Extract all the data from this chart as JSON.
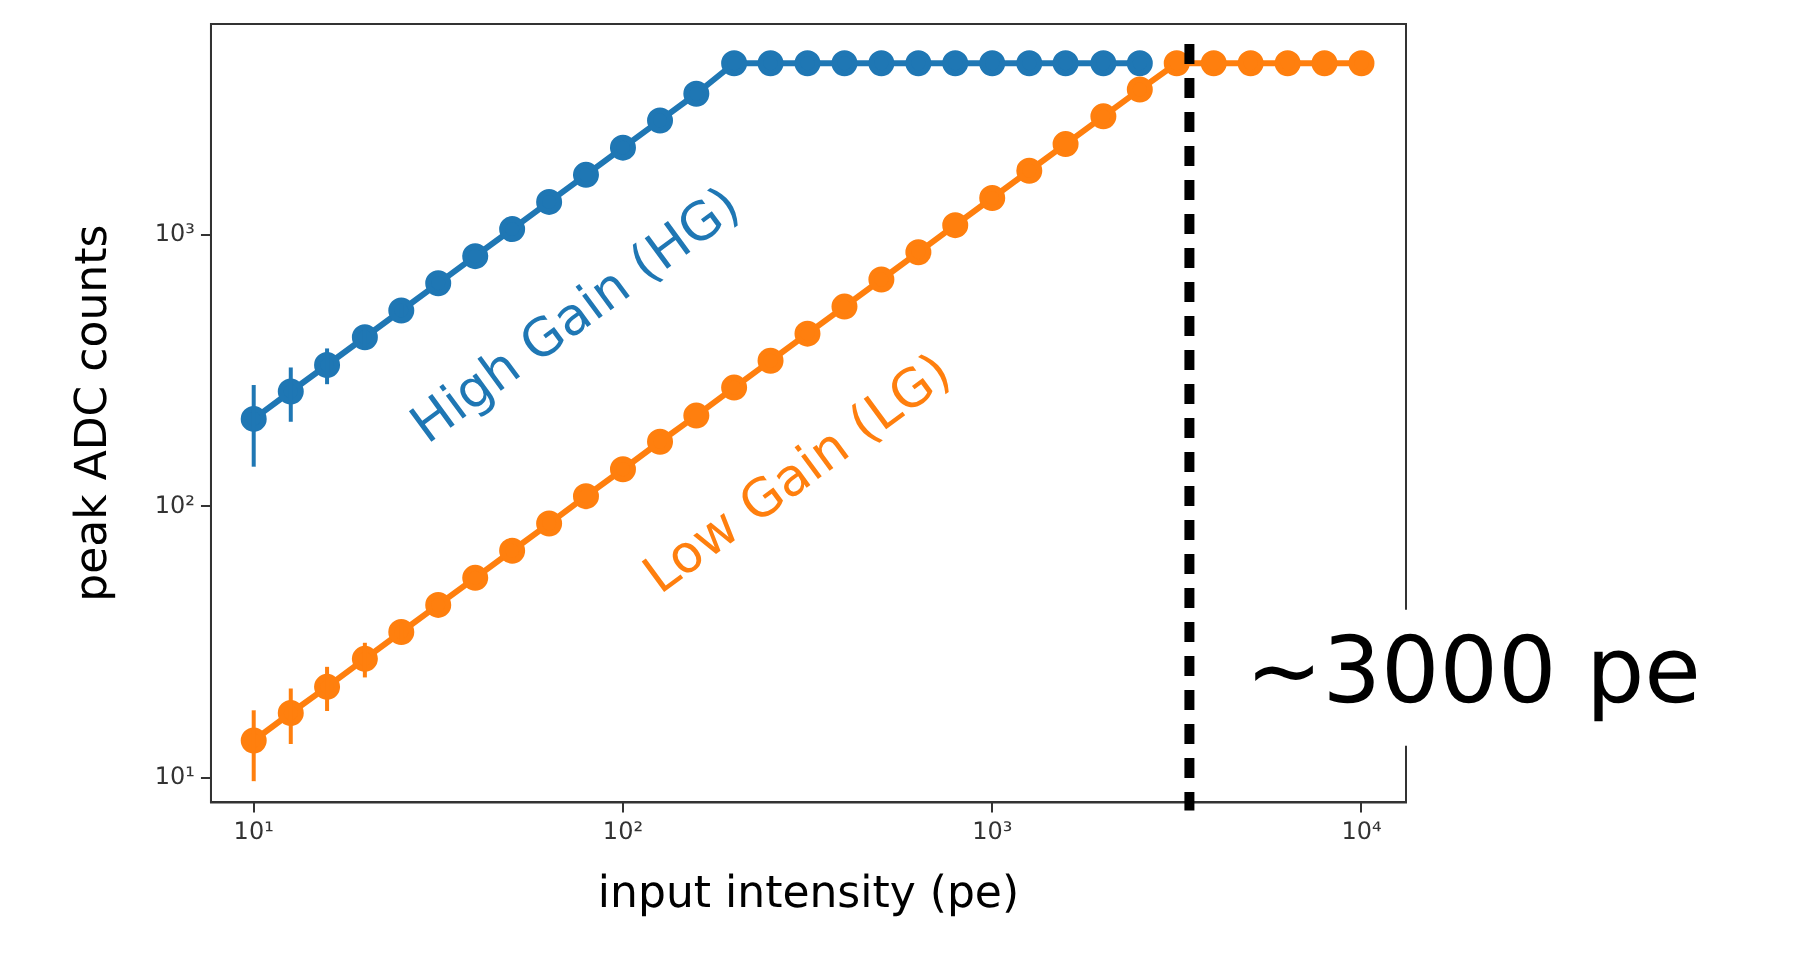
{
  "chart_data": {
    "type": "line",
    "xlabel": "input intensity (pe)",
    "ylabel": "peak ADC counts",
    "x": [
      10,
      12.6,
      15.8,
      20,
      25.1,
      31.6,
      39.8,
      50.1,
      63.1,
      79.4,
      100,
      126,
      158,
      200,
      251,
      316,
      398,
      501,
      631,
      794,
      1000,
      1260,
      1580,
      2000,
      2510,
      3160,
      3980,
      5010,
      6310,
      7940,
      10000
    ],
    "series": [
      {
        "name": "High Gain (HG)",
        "color": "#1f77b4",
        "values": [
          210,
          265,
          332,
          420,
          527,
          664,
          836,
          1052,
          1325,
          1667,
          2100,
          2646,
          3318,
          4300,
          4300,
          4300,
          4300,
          4300,
          4300,
          4300,
          4300,
          4300,
          4300,
          4300,
          4300,
          null,
          null,
          null,
          null,
          null,
          null
        ],
        "errors": [
          70,
          60,
          50,
          40,
          30,
          null,
          null,
          null,
          null,
          null,
          null,
          null,
          null,
          null,
          null,
          null,
          null,
          null,
          null,
          null,
          null,
          null,
          null,
          null,
          null,
          null,
          null,
          null,
          null,
          null,
          null
        ]
      },
      {
        "name": "Low Gain (LG)",
        "color": "#ff7f0e",
        "values": [
          13.7,
          17.3,
          21.6,
          27.4,
          34.4,
          43.3,
          54.5,
          68.6,
          86.4,
          109,
          137,
          173,
          216,
          274,
          344,
          433,
          545,
          686,
          864,
          1088,
          1370,
          1726,
          2165,
          2740,
          3439,
          4300,
          4300,
          4300,
          4300,
          4300,
          4300
        ],
        "errors": [
          4,
          4,
          4,
          4,
          3,
          null,
          null,
          null,
          null,
          null,
          null,
          null,
          null,
          null,
          null,
          null,
          null,
          null,
          null,
          null,
          null,
          null,
          null,
          null,
          null,
          null,
          null,
          null,
          null,
          null,
          null
        ]
      }
    ],
    "log": "xy",
    "xlim": [
      7.66,
      13200
    ],
    "ylim": [
      8.1,
      6000
    ],
    "xticks": [
      {
        "value": 10,
        "label": "10¹"
      },
      {
        "value": 100,
        "label": "10²"
      },
      {
        "value": 1000,
        "label": "10³"
      },
      {
        "value": 10000,
        "label": "10⁴"
      }
    ],
    "yticks": [
      {
        "value": 10,
        "label": "10¹"
      },
      {
        "value": 100,
        "label": "10²"
      },
      {
        "value": 1000,
        "label": "10³"
      }
    ],
    "ref_lines": [
      {
        "axis": "x",
        "value": 3420,
        "label": "∼3000 pe",
        "color": "#000000",
        "line_style": "dashed"
      }
    ],
    "marker": "circle",
    "grid": false,
    "legend": false
  }
}
